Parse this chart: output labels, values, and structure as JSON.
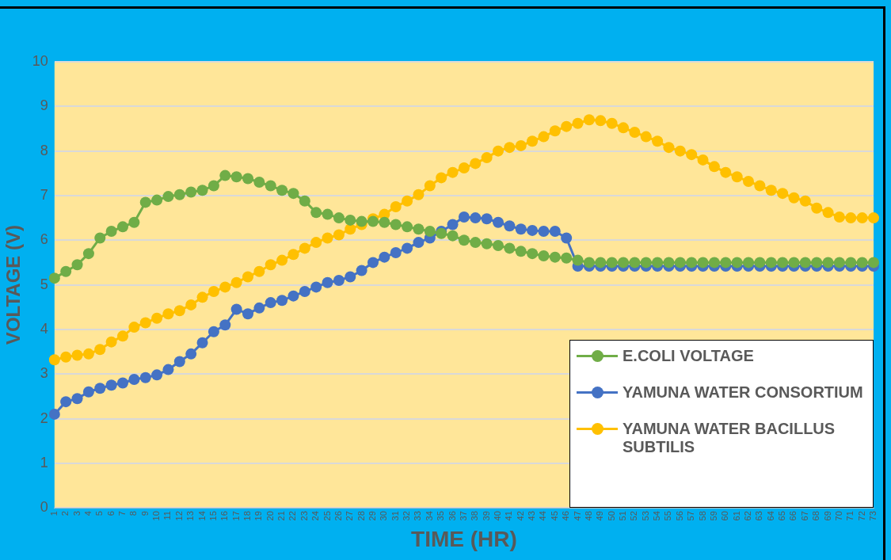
{
  "chart_data": {
    "type": "line",
    "xlabel": "TIME (HR)",
    "ylabel": "VOLTAGE (V)",
    "categories": [
      "1",
      "2",
      "3",
      "4",
      "5",
      "6",
      "7",
      "8",
      "9",
      "10",
      "11",
      "12",
      "13",
      "14",
      "15",
      "16",
      "17",
      "18",
      "19",
      "20",
      "21",
      "22",
      "23",
      "24",
      "25",
      "26",
      "27",
      "28",
      "29",
      "30",
      "31",
      "32",
      "33",
      "34",
      "35",
      "36",
      "37",
      "38",
      "39",
      "40",
      "41",
      "42",
      "43",
      "44",
      "45",
      "46",
      "47",
      "48",
      "49",
      "50",
      "51",
      "52",
      "53",
      "54",
      "55",
      "56",
      "57",
      "58",
      "59",
      "60",
      "61",
      "62",
      "63",
      "64",
      "65",
      "66",
      "67",
      "68",
      "69",
      "70",
      "71",
      "72",
      "73"
    ],
    "series": [
      {
        "name": "E.COLI VOLTAGE",
        "color": "#70ad47",
        "values": [
          5.15,
          5.3,
          5.45,
          5.7,
          6.05,
          6.2,
          6.3,
          6.4,
          6.85,
          6.9,
          6.98,
          7.02,
          7.08,
          7.12,
          7.22,
          7.45,
          7.42,
          7.38,
          7.3,
          7.22,
          7.12,
          7.05,
          6.88,
          6.62,
          6.58,
          6.5,
          6.45,
          6.42,
          6.42,
          6.4,
          6.35,
          6.3,
          6.25,
          6.2,
          6.15,
          6.1,
          6.0,
          5.95,
          5.92,
          5.88,
          5.82,
          5.75,
          5.7,
          5.65,
          5.62,
          5.6,
          5.55,
          5.5,
          5.5,
          5.5,
          5.5,
          5.5,
          5.5,
          5.5,
          5.5,
          5.5,
          5.5,
          5.5,
          5.5,
          5.5,
          5.5,
          5.5,
          5.5,
          5.5,
          5.5,
          5.5,
          5.5,
          5.5,
          5.5,
          5.5,
          5.5,
          5.5,
          5.5
        ]
      },
      {
        "name": "YAMUNA WATER CONSORTIUM",
        "color": "#4472c4",
        "values": [
          2.1,
          2.38,
          2.45,
          2.6,
          2.68,
          2.75,
          2.8,
          2.88,
          2.92,
          2.98,
          3.1,
          3.28,
          3.45,
          3.7,
          3.95,
          4.1,
          4.45,
          4.35,
          4.48,
          4.6,
          4.65,
          4.75,
          4.85,
          4.95,
          5.05,
          5.1,
          5.18,
          5.32,
          5.5,
          5.62,
          5.72,
          5.82,
          5.95,
          6.05,
          6.2,
          6.35,
          6.52,
          6.5,
          6.48,
          6.4,
          6.32,
          6.25,
          6.22,
          6.2,
          6.2,
          6.05,
          5.42,
          5.42,
          5.42,
          5.42,
          5.42,
          5.42,
          5.42,
          5.42,
          5.42,
          5.42,
          5.42,
          5.42,
          5.42,
          5.42,
          5.42,
          5.42,
          5.42,
          5.42,
          5.42,
          5.42,
          5.42,
          5.42,
          5.42,
          5.42,
          5.42,
          5.42,
          5.42
        ]
      },
      {
        "name": "YAMUNA WATER BACILLUS SUBTILIS",
        "color": "#ffc000",
        "values": [
          3.32,
          3.38,
          3.42,
          3.45,
          3.55,
          3.72,
          3.85,
          4.05,
          4.15,
          4.25,
          4.35,
          4.42,
          4.55,
          4.72,
          4.85,
          4.95,
          5.05,
          5.18,
          5.3,
          5.45,
          5.55,
          5.68,
          5.82,
          5.95,
          6.05,
          6.12,
          6.25,
          6.35,
          6.48,
          6.58,
          6.75,
          6.88,
          7.02,
          7.22,
          7.4,
          7.52,
          7.62,
          7.72,
          7.85,
          8.0,
          8.08,
          8.12,
          8.22,
          8.32,
          8.45,
          8.55,
          8.62,
          8.7,
          8.68,
          8.62,
          8.52,
          8.42,
          8.32,
          8.22,
          8.08,
          8.0,
          7.92,
          7.8,
          7.65,
          7.52,
          7.42,
          7.32,
          7.22,
          7.12,
          7.05,
          6.95,
          6.88,
          6.72,
          6.62,
          6.52,
          6.5,
          6.5,
          6.5
        ]
      }
    ],
    "ylim": [
      0,
      10
    ],
    "yticks": [
      0,
      1,
      2,
      3,
      4,
      5,
      6,
      7,
      8,
      9,
      10
    ],
    "grid": "y",
    "legend": "bottom right",
    "marker": "circle",
    "line_style": "solid"
  }
}
